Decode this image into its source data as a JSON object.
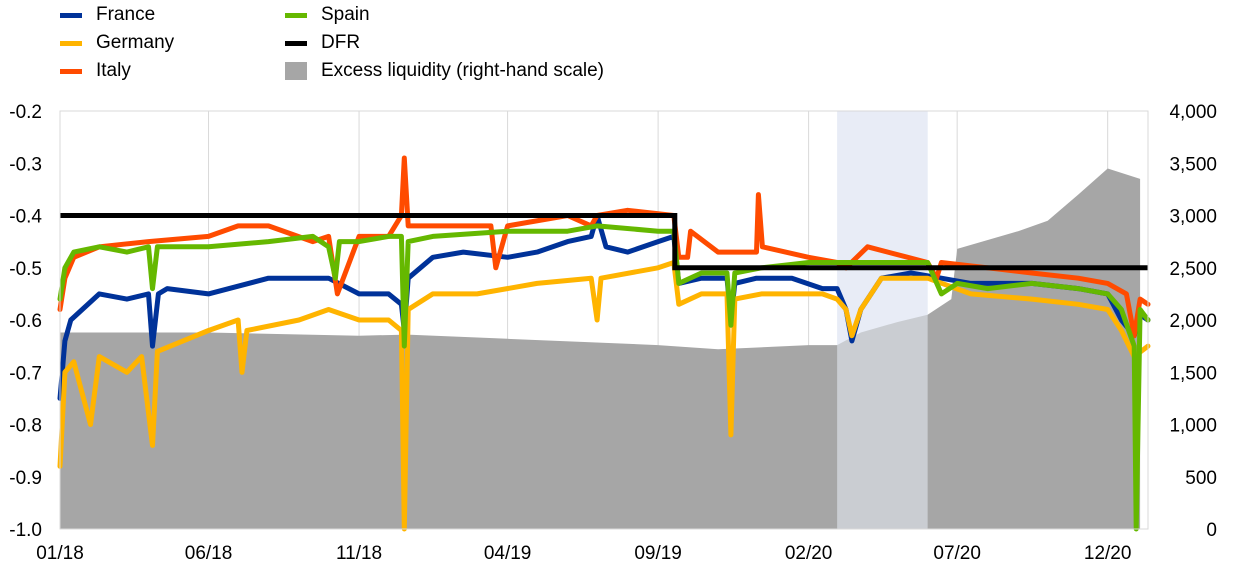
{
  "legend": [
    {
      "label": "France",
      "color": "#003299",
      "kind": "line",
      "col": 0,
      "row": 0
    },
    {
      "label": "Germany",
      "color": "#FFB400",
      "kind": "line",
      "col": 0,
      "row": 1
    },
    {
      "label": "Italy",
      "color": "#FF4B00",
      "kind": "line",
      "col": 0,
      "row": 2
    },
    {
      "label": "Spain",
      "color": "#65B800",
      "kind": "line",
      "col": 1,
      "row": 0
    },
    {
      "label": "DFR",
      "color": "#000000",
      "kind": "line",
      "col": 1,
      "row": 1
    },
    {
      "label": "Excess liquidity (right-hand scale)",
      "color": "#A6A6A6",
      "kind": "box",
      "col": 1,
      "row": 2
    }
  ],
  "chart_data": {
    "type": "line",
    "x_start": "2018-01-01",
    "x_end": "2021-01-11",
    "x_ticks": [
      {
        "label": "01/18",
        "date": "2018-01-01"
      },
      {
        "label": "06/18",
        "date": "2018-06-01"
      },
      {
        "label": "11/18",
        "date": "2018-11-01"
      },
      {
        "label": "04/19",
        "date": "2019-04-01"
      },
      {
        "label": "09/19",
        "date": "2019-09-01"
      },
      {
        "label": "02/20",
        "date": "2020-02-01"
      },
      {
        "label": "07/20",
        "date": "2020-07-01"
      },
      {
        "label": "12/20",
        "date": "2020-12-01"
      }
    ],
    "y_left": {
      "min": -1.0,
      "max": -0.2,
      "ticks": [
        -1.0,
        -0.9,
        -0.8,
        -0.7,
        -0.6,
        -0.5,
        -0.4,
        -0.3,
        -0.2
      ],
      "tick_labels": [
        "-1.0",
        "-0.9",
        "-0.8",
        "-0.7",
        "-0.6",
        "-0.5",
        "-0.4",
        "-0.3",
        "-0.2"
      ]
    },
    "y_right": {
      "min": 0,
      "max": 4000,
      "ticks": [
        0,
        500,
        1000,
        1500,
        2000,
        2500,
        3000,
        3500,
        4000
      ],
      "tick_labels": [
        "0",
        "500",
        "1,000",
        "1,500",
        "2,000",
        "2,500",
        "3,000",
        "3,500",
        "4,000"
      ]
    },
    "grid": "vertical",
    "legend_position": "top-left",
    "shaded_period": {
      "start": "2020-03-01",
      "end": "2020-06-01",
      "color": "#E8ECF6"
    },
    "excess_liquidity": {
      "axis": "right",
      "color": "#A6A6A6",
      "x": [
        "2018-01-01",
        "2018-06-01",
        "2018-11-01",
        "2018-12-20",
        "2019-04-01",
        "2019-09-01",
        "2019-11-01",
        "2020-02-01",
        "2020-03-01",
        "2020-03-25",
        "2020-05-01",
        "2020-06-01",
        "2020-06-25",
        "2020-07-01",
        "2020-09-01",
        "2020-10-01",
        "2020-11-01",
        "2020-12-01",
        "2021-01-03"
      ],
      "values": [
        1880,
        1880,
        1850,
        1860,
        1820,
        1760,
        1720,
        1760,
        1760,
        1880,
        1980,
        2050,
        2200,
        2680,
        2850,
        2950,
        3200,
        3450,
        3350
      ]
    },
    "dfr": {
      "name": "DFR",
      "color": "#000000",
      "x": [
        "2018-01-01",
        "2019-09-18",
        "2019-09-18",
        "2021-01-11"
      ],
      "values": [
        -0.4,
        -0.4,
        -0.5,
        -0.5
      ]
    },
    "series": [
      {
        "name": "France",
        "color": "#003299",
        "x": [
          "2018-01-01",
          "2018-01-06",
          "2018-01-12",
          "2018-02-10",
          "2018-03-10",
          "2018-04-01",
          "2018-04-05",
          "2018-04-11",
          "2018-04-20",
          "2018-06-01",
          "2018-08-01",
          "2018-09-15",
          "2018-10-01",
          "2018-11-01",
          "2018-12-01",
          "2018-12-14",
          "2018-12-17",
          "2018-12-21",
          "2019-01-15",
          "2019-02-15",
          "2019-04-01",
          "2019-05-01",
          "2019-06-01",
          "2019-06-25",
          "2019-07-01",
          "2019-07-10",
          "2019-08-01",
          "2019-09-01",
          "2019-09-17",
          "2019-09-22",
          "2019-10-15",
          "2019-11-10",
          "2019-11-14",
          "2019-11-18",
          "2019-12-10",
          "2020-01-15",
          "2020-02-15",
          "2020-03-01",
          "2020-03-10",
          "2020-03-16",
          "2020-03-25",
          "2020-04-15",
          "2020-05-15",
          "2020-06-15",
          "2020-07-15",
          "2020-09-15",
          "2020-11-01",
          "2020-12-01",
          "2020-12-15",
          "2020-12-28",
          "2021-01-03",
          "2021-01-11"
        ],
        "values": [
          -0.75,
          -0.64,
          -0.6,
          -0.55,
          -0.56,
          -0.55,
          -0.65,
          -0.55,
          -0.54,
          -0.55,
          -0.52,
          -0.52,
          -0.52,
          -0.55,
          -0.55,
          -0.57,
          -0.62,
          -0.52,
          -0.48,
          -0.47,
          -0.48,
          -0.47,
          -0.45,
          -0.44,
          -0.4,
          -0.46,
          -0.47,
          -0.45,
          -0.44,
          -0.53,
          -0.52,
          -0.52,
          -0.6,
          -0.53,
          -0.52,
          -0.52,
          -0.54,
          -0.54,
          -0.58,
          -0.64,
          -0.58,
          -0.52,
          -0.51,
          -0.52,
          -0.53,
          -0.53,
          -0.54,
          -0.55,
          -0.6,
          -0.63,
          -0.59,
          -0.6
        ]
      },
      {
        "name": "Germany",
        "color": "#FFB400",
        "x": [
          "2018-01-01",
          "2018-01-06",
          "2018-01-15",
          "2018-02-01",
          "2018-02-10",
          "2018-03-10",
          "2018-03-25",
          "2018-04-05",
          "2018-04-10",
          "2018-06-01",
          "2018-07-01",
          "2018-07-05",
          "2018-07-10",
          "2018-09-01",
          "2018-10-01",
          "2018-11-01",
          "2018-12-01",
          "2018-12-14",
          "2018-12-17",
          "2018-12-21",
          "2019-01-15",
          "2019-03-01",
          "2019-05-01",
          "2019-06-25",
          "2019-07-01",
          "2019-07-05",
          "2019-09-01",
          "2019-09-17",
          "2019-09-22",
          "2019-10-15",
          "2019-11-10",
          "2019-11-14",
          "2019-11-18",
          "2019-12-15",
          "2020-02-15",
          "2020-03-01",
          "2020-03-10",
          "2020-03-16",
          "2020-03-25",
          "2020-04-15",
          "2020-06-01",
          "2020-07-15",
          "2020-09-15",
          "2020-11-01",
          "2020-12-01",
          "2020-12-15",
          "2020-12-28",
          "2021-01-11"
        ],
        "values": [
          -0.88,
          -0.7,
          -0.68,
          -0.8,
          -0.67,
          -0.7,
          -0.67,
          -0.84,
          -0.66,
          -0.62,
          -0.6,
          -0.7,
          -0.62,
          -0.6,
          -0.58,
          -0.6,
          -0.6,
          -0.62,
          -1.0,
          -0.58,
          -0.55,
          -0.55,
          -0.53,
          -0.52,
          -0.6,
          -0.52,
          -0.5,
          -0.49,
          -0.57,
          -0.55,
          -0.55,
          -0.82,
          -0.56,
          -0.55,
          -0.55,
          -0.56,
          -0.58,
          -0.63,
          -0.58,
          -0.52,
          -0.52,
          -0.55,
          -0.56,
          -0.57,
          -0.58,
          -0.62,
          -0.67,
          -0.65
        ]
      },
      {
        "name": "Italy",
        "color": "#FF4B00",
        "x": [
          "2018-01-01",
          "2018-01-06",
          "2018-01-15",
          "2018-02-10",
          "2018-04-01",
          "2018-06-01",
          "2018-07-01",
          "2018-08-01",
          "2018-09-15",
          "2018-10-01",
          "2018-10-10",
          "2018-11-01",
          "2018-12-01",
          "2018-12-14",
          "2018-12-17",
          "2018-12-21",
          "2019-01-15",
          "2019-03-15",
          "2019-03-20",
          "2019-04-01",
          "2019-06-01",
          "2019-06-25",
          "2019-07-01",
          "2019-08-01",
          "2019-09-17",
          "2019-09-22",
          "2019-10-01",
          "2019-10-04",
          "2019-11-01",
          "2019-12-10",
          "2019-12-12",
          "2019-12-16",
          "2020-02-01",
          "2020-03-01",
          "2020-03-10",
          "2020-04-01",
          "2020-06-01",
          "2020-06-10",
          "2020-06-15",
          "2020-08-01",
          "2020-09-15",
          "2020-11-01",
          "2020-12-01",
          "2020-12-20",
          "2020-12-28",
          "2021-01-03",
          "2021-01-11"
        ],
        "values": [
          -0.58,
          -0.52,
          -0.48,
          -0.46,
          -0.45,
          -0.44,
          -0.42,
          -0.42,
          -0.45,
          -0.44,
          -0.55,
          -0.44,
          -0.44,
          -0.4,
          -0.29,
          -0.42,
          -0.42,
          -0.42,
          -0.5,
          -0.42,
          -0.4,
          -0.42,
          -0.4,
          -0.39,
          -0.4,
          -0.48,
          -0.48,
          -0.43,
          -0.47,
          -0.47,
          -0.36,
          -0.46,
          -0.48,
          -0.49,
          -0.5,
          -0.46,
          -0.49,
          -0.52,
          -0.49,
          -0.5,
          -0.51,
          -0.52,
          -0.53,
          -0.55,
          -0.63,
          -0.56,
          -0.57
        ]
      },
      {
        "name": "Spain",
        "color": "#65B800",
        "x": [
          "2018-01-01",
          "2018-01-06",
          "2018-01-15",
          "2018-02-10",
          "2018-03-10",
          "2018-04-01",
          "2018-04-05",
          "2018-04-10",
          "2018-06-01",
          "2018-08-01",
          "2018-09-15",
          "2018-10-01",
          "2018-10-08",
          "2018-10-12",
          "2018-11-01",
          "2018-12-01",
          "2018-12-14",
          "2018-12-17",
          "2018-12-21",
          "2019-01-15",
          "2019-04-01",
          "2019-06-01",
          "2019-07-01",
          "2019-09-01",
          "2019-09-17",
          "2019-09-22",
          "2019-10-15",
          "2019-11-10",
          "2019-11-14",
          "2019-11-18",
          "2019-12-15",
          "2020-02-01",
          "2020-03-01",
          "2020-04-01",
          "2020-06-01",
          "2020-06-15",
          "2020-07-01",
          "2020-08-01",
          "2020-09-15",
          "2020-11-01",
          "2020-12-01",
          "2020-12-15",
          "2020-12-28",
          "2020-12-30",
          "2021-01-03",
          "2021-01-11"
        ],
        "values": [
          -0.56,
          -0.5,
          -0.47,
          -0.46,
          -0.47,
          -0.46,
          -0.54,
          -0.46,
          -0.46,
          -0.45,
          -0.44,
          -0.46,
          -0.52,
          -0.45,
          -0.45,
          -0.44,
          -0.44,
          -0.65,
          -0.45,
          -0.44,
          -0.43,
          -0.43,
          -0.42,
          -0.43,
          -0.43,
          -0.53,
          -0.51,
          -0.51,
          -0.61,
          -0.51,
          -0.5,
          -0.49,
          -0.49,
          -0.49,
          -0.49,
          -0.55,
          -0.53,
          -0.54,
          -0.53,
          -0.54,
          -0.55,
          -0.58,
          -0.65,
          -1.0,
          -0.58,
          -0.6
        ]
      }
    ]
  }
}
